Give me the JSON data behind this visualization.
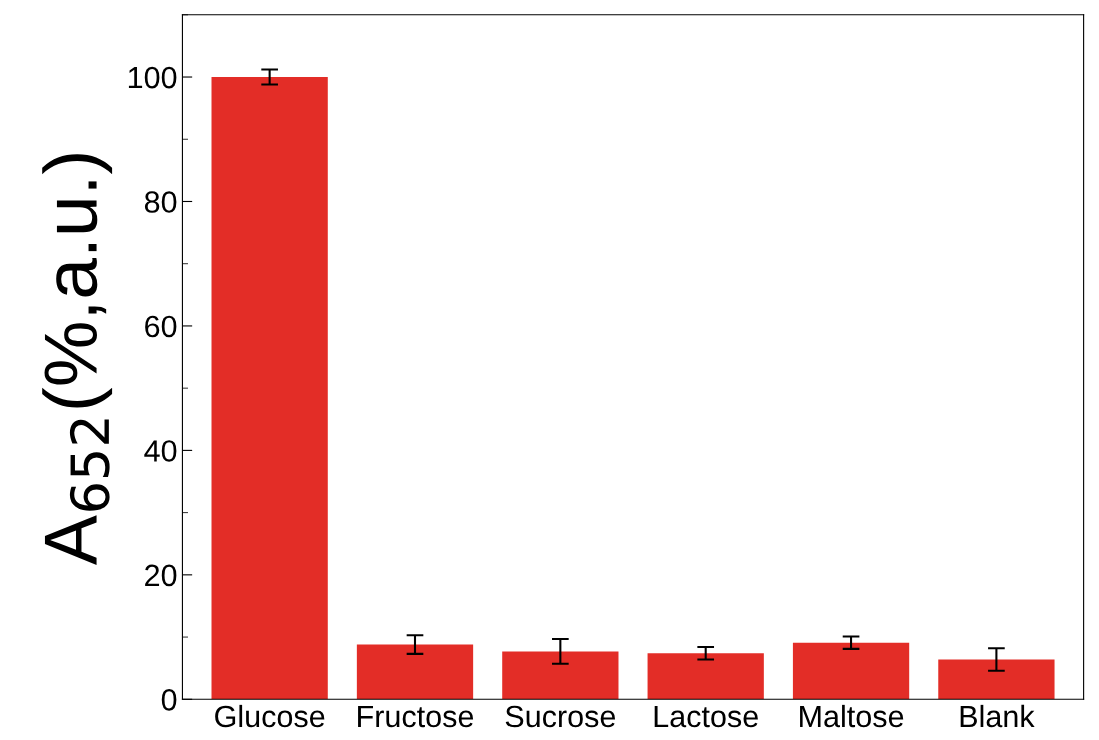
{
  "chart_data": {
    "type": "bar",
    "ylabel": "A$_{652}$(%,a.u.)",
    "categories": [
      "Glucose",
      "Fructose",
      "Sucrose",
      "Lactose",
      "Maltose",
      "Blank"
    ],
    "values": [
      100,
      8.8,
      7.7,
      7.4,
      9.1,
      6.4
    ],
    "errors": [
      1.2,
      1.5,
      2,
      1.0,
      1.0,
      1.8
    ],
    "color": "#e32d27",
    "ylim": [
      0,
      110
    ],
    "yticks": [
      0,
      20,
      40,
      60,
      80,
      100
    ],
    "grid": false
  }
}
